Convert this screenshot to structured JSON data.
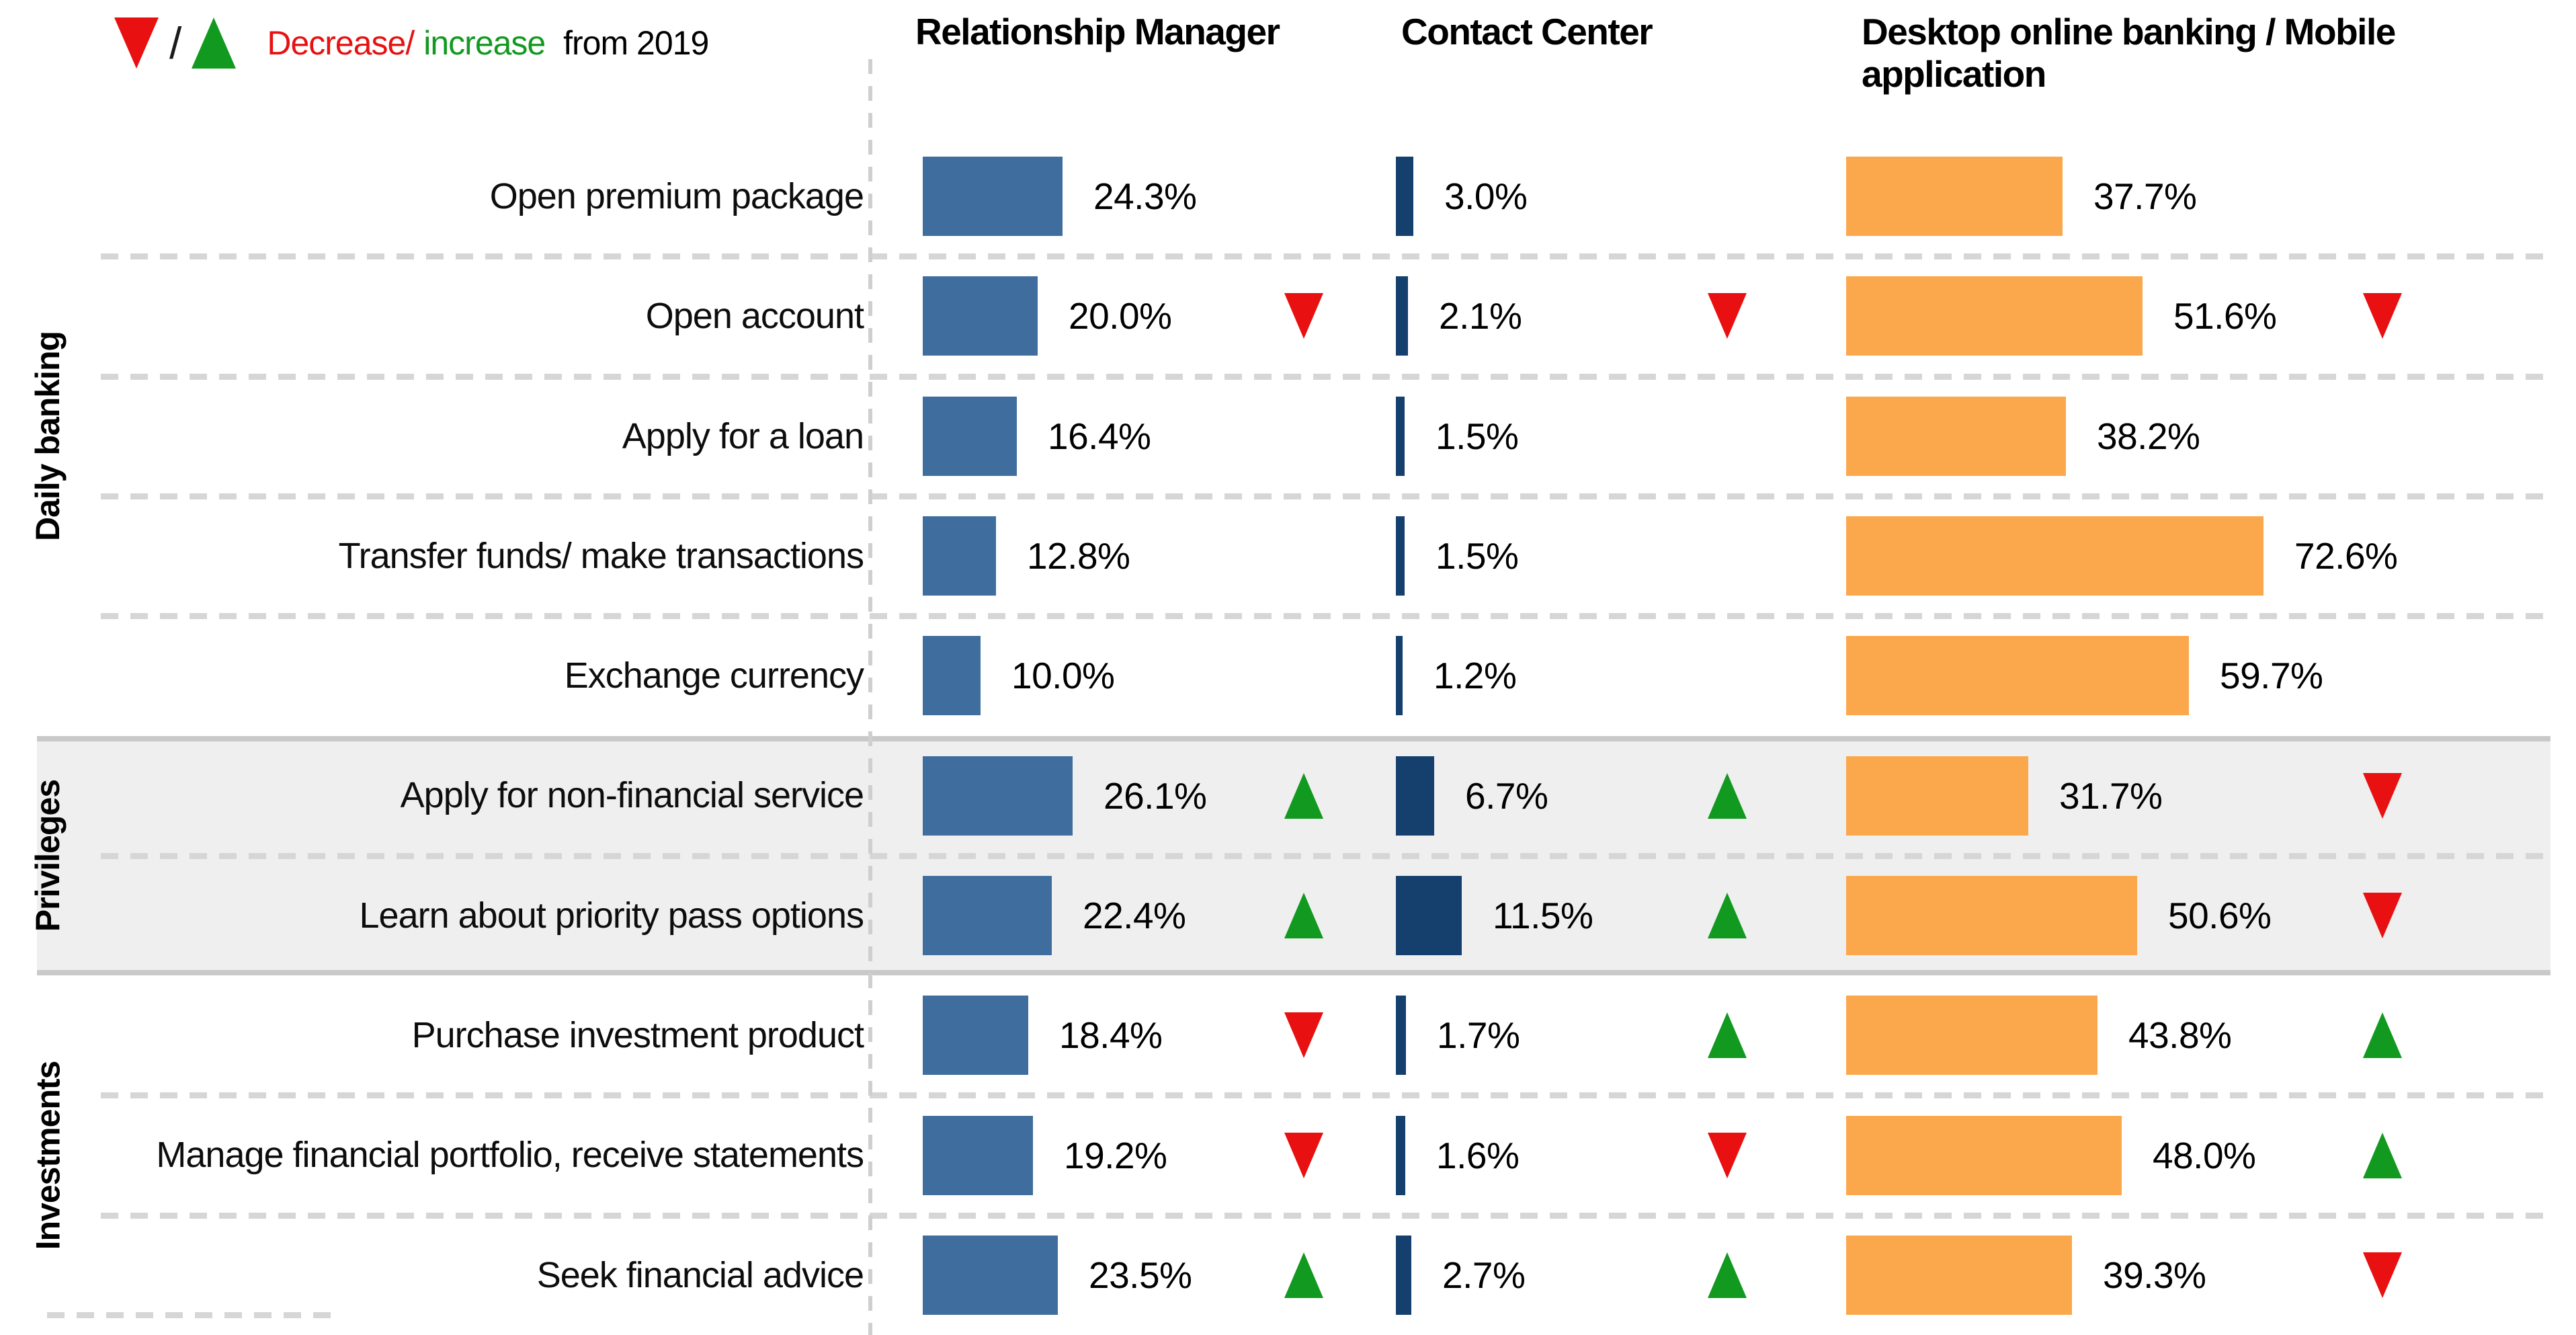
{
  "legend": {
    "decrease_text": "Decrease",
    "slash_between_icons": "/",
    "word_slash": "/",
    "increase_text": "increase",
    "from_text": " from 2019"
  },
  "colors": {
    "rm_bar": "#3f6e9e",
    "cc_bar": "#15406e",
    "desktop_bar": "#fba84c",
    "decrease": "#e81010",
    "increase": "#12991f",
    "separator": "#d6d6d6",
    "band_bg": "#efefef",
    "band_border": "#c9c9c9"
  },
  "chart_data": {
    "type": "bar",
    "orientation": "horizontal",
    "unit": "%",
    "title": "",
    "legend_text": "Decrease/increase from 2019",
    "value_axis": "hidden",
    "grid": "dashed-row-separators",
    "highlighted_group": "Privileges",
    "categories": [
      "Open premium package",
      "Open account",
      "Apply for a loan",
      "Transfer funds/ make transactions",
      "Exchange currency",
      "Apply for non-financial service",
      "Learn about priority pass options",
      "Purchase investment product",
      "Manage financial portfolio, receive statements",
      "Seek financial advice"
    ],
    "groups": [
      {
        "label": "Daily banking",
        "start": 0,
        "end": 4
      },
      {
        "label": "Privileges",
        "start": 5,
        "end": 6
      },
      {
        "label": "Investments",
        "start": 7,
        "end": 9
      }
    ],
    "series": [
      {
        "name": "Relationship Manager",
        "color": "#3f6e9e",
        "values": [
          24.3,
          20.0,
          16.4,
          12.8,
          10.0,
          26.1,
          22.4,
          18.4,
          19.2,
          23.5
        ],
        "labels": [
          "24.3%",
          "20.0%",
          "16.4%",
          "12.8%",
          "10.0%",
          "26.1%",
          "22.4%",
          "18.4%",
          "19.2%",
          "23.5%"
        ],
        "trends": [
          null,
          "down",
          null,
          null,
          null,
          "up",
          "up",
          "down",
          "down",
          "up"
        ]
      },
      {
        "name": "Contact Center",
        "color": "#15406e",
        "values": [
          3.0,
          2.1,
          1.5,
          1.5,
          1.2,
          6.7,
          11.5,
          1.7,
          1.6,
          2.7
        ],
        "labels": [
          "3.0%",
          "2.1%",
          "1.5%",
          "1.5%",
          "1.2%",
          "6.7%",
          "11.5%",
          "1.7%",
          "1.6%",
          "2.7%"
        ],
        "trends": [
          null,
          "down",
          null,
          null,
          null,
          "up",
          "up",
          "up",
          "down",
          "up"
        ]
      },
      {
        "name": "Desktop online banking / Mobile application",
        "color": "#fba84c",
        "values": [
          37.7,
          51.6,
          38.2,
          72.6,
          59.7,
          31.7,
          50.6,
          43.8,
          48.0,
          39.3
        ],
        "labels": [
          "37.7%",
          "51.6%",
          "38.2%",
          "72.6%",
          "59.7%",
          "31.7%",
          "50.6%",
          "43.8%",
          "48.0%",
          "39.3%"
        ],
        "trends": [
          null,
          "down",
          null,
          null,
          null,
          "down",
          "down",
          "up",
          "up",
          "down"
        ]
      }
    ]
  }
}
